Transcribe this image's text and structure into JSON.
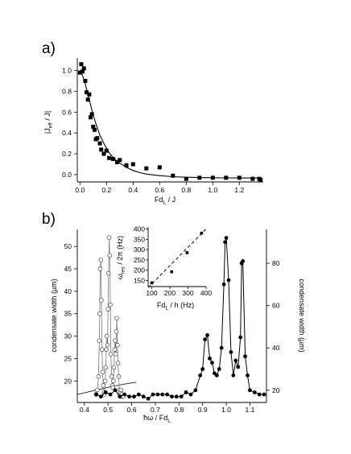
{
  "chart_data": [
    {
      "panel_label": "a)",
      "type": "scatter",
      "xlabel": "Fd",
      "xlabel_sub": "L",
      "xlabel_tail": " / J",
      "ylabel": "|J",
      "ylabel_sub": "eff",
      "ylabel_tail": " / J|",
      "xlim": [
        -0.02,
        1.38
      ],
      "ylim": [
        -0.07,
        1.12
      ],
      "xticks": [
        0.0,
        0.2,
        0.4,
        0.6,
        0.8,
        1.0,
        1.2
      ],
      "xtick_labels": [
        "0.0",
        "0.2",
        "0.4",
        "0.6",
        "0.8",
        "1.0",
        "1.2"
      ],
      "yticks": [
        0.0,
        0.2,
        0.4,
        0.6,
        0.8,
        1.0
      ],
      "ytick_labels": [
        "0.0",
        "0.2",
        "0.4",
        "0.6",
        "0.8",
        "1.0"
      ],
      "grid": false,
      "series": [
        {
          "marker": "square",
          "x": [
            0.0,
            0.01,
            0.02,
            0.03,
            0.04,
            0.05,
            0.06,
            0.07,
            0.08,
            0.09,
            0.1,
            0.11,
            0.12,
            0.13,
            0.15,
            0.16,
            0.18,
            0.2,
            0.22,
            0.25,
            0.28,
            0.3,
            0.35,
            0.4,
            0.5,
            0.6,
            0.7,
            0.8,
            0.9,
            1.0,
            1.1,
            1.2,
            1.3,
            1.35,
            1.36
          ],
          "y": [
            0.98,
            1.06,
            0.99,
            1.02,
            0.9,
            0.79,
            0.72,
            0.77,
            0.55,
            0.58,
            0.46,
            0.43,
            0.34,
            0.35,
            0.3,
            0.24,
            0.2,
            0.23,
            0.16,
            0.15,
            0.12,
            0.14,
            0.09,
            0.1,
            0.06,
            0.07,
            -0.01,
            -0.04,
            -0.03,
            -0.03,
            -0.03,
            -0.03,
            -0.04,
            -0.04,
            -0.05
          ]
        }
      ],
      "fit_curve": {
        "x": [
          0.0,
          0.02,
          0.04,
          0.06,
          0.08,
          0.1,
          0.12,
          0.15,
          0.18,
          0.22,
          0.26,
          0.3,
          0.35,
          0.4,
          0.45,
          0.5,
          0.6,
          0.7,
          0.8,
          0.9,
          1.0,
          1.1,
          1.2,
          1.3,
          1.36
        ],
        "y": [
          1.0,
          0.95,
          0.87,
          0.77,
          0.67,
          0.57,
          0.49,
          0.38,
          0.3,
          0.21,
          0.15,
          0.11,
          0.07,
          0.04,
          0.02,
          0.005,
          -0.01,
          -0.02,
          -0.025,
          -0.028,
          -0.03,
          -0.031,
          -0.032,
          -0.032,
          -0.033
        ]
      }
    },
    {
      "panel_label": "b)",
      "type": "line",
      "xlabel": "ħω / Fd",
      "xlabel_sub": "L",
      "ylabel": "condensate width (µm)",
      "y2label": "condensate width (µm)",
      "xlim": [
        0.37,
        1.17
      ],
      "ylim": [
        15.2,
        53.8
      ],
      "y2lim": [
        14.2,
        96
      ],
      "xticks": [
        0.4,
        0.5,
        0.6,
        0.7,
        0.8,
        0.9,
        1.0,
        1.1
      ],
      "xtick_labels": [
        "0.4",
        "0.5",
        "0.6",
        "0.7",
        "0.8",
        "0.9",
        "1.0",
        "1.1"
      ],
      "yticks": [
        20,
        25,
        30,
        35,
        40,
        45,
        50
      ],
      "ytick_labels": [
        "20",
        "25",
        "30",
        "35",
        "40",
        "45",
        "50"
      ],
      "y2ticks": [
        20,
        40,
        60,
        80
      ],
      "y2tick_labels": [
        "20",
        "40",
        "60",
        "80"
      ],
      "grid": false,
      "series": [
        {
          "name": "",
          "marker": "open-circle",
          "axis": "left",
          "x": [
            0.45,
            0.455,
            0.46,
            0.463,
            0.465,
            0.467,
            0.47,
            0.472,
            0.475,
            0.477,
            0.48,
            0.483,
            0.485,
            0.488,
            0.49,
            0.493,
            0.495,
            0.498,
            0.5,
            0.502,
            0.505,
            0.507,
            0.51,
            0.512,
            0.515,
            0.518,
            0.52,
            0.523,
            0.525,
            0.528,
            0.53,
            0.533,
            0.535,
            0.537,
            0.54,
            0.542,
            0.545,
            0.548,
            0.55,
            0.553,
            0.555,
            0.558,
            0.56,
            0.565
          ],
          "y": [
            17,
            18,
            21,
            29,
            35,
            45,
            47,
            38,
            27,
            22,
            19,
            17.5,
            17,
            20,
            23,
            27,
            30,
            28,
            36,
            44,
            52,
            48,
            37,
            26,
            21,
            19,
            18.5,
            20,
            23,
            27,
            29,
            26,
            31,
            34,
            28,
            24,
            21,
            18,
            17,
            17.5,
            18,
            17,
            16.5,
            16.5
          ]
        },
        {
          "name": "",
          "marker": "filled-circle",
          "axis": "right",
          "x": [
            0.45,
            0.47,
            0.49,
            0.51,
            0.53,
            0.55,
            0.57,
            0.59,
            0.61,
            0.63,
            0.65,
            0.67,
            0.69,
            0.71,
            0.73,
            0.75,
            0.77,
            0.79,
            0.81,
            0.83,
            0.85,
            0.87,
            0.89,
            0.9,
            0.91,
            0.92,
            0.93,
            0.94,
            0.95,
            0.96,
            0.97,
            0.98,
            0.99,
            0.995,
            1.0,
            1.01,
            1.02,
            1.03,
            1.04,
            1.05,
            1.06,
            1.065,
            1.07,
            1.08,
            1.09,
            1.1,
            1.12,
            1.14,
            1.16
          ],
          "y": [
            18,
            17,
            19,
            18,
            20,
            17,
            18,
            17,
            17,
            18,
            17,
            16,
            18,
            18,
            18,
            18,
            17,
            17,
            17,
            19,
            18,
            20,
            27,
            30,
            44,
            46,
            35,
            33,
            28,
            27,
            30,
            40,
            70,
            90,
            92,
            72,
            38,
            27,
            34,
            31,
            45,
            80,
            81,
            36,
            27,
            20,
            19,
            18,
            18
          ]
        }
      ],
      "baseline": {
        "x": [
          0.37,
          0.42,
          0.47,
          0.52,
          0.58,
          0.62
        ],
        "y": [
          17.0,
          17.6,
          18.2,
          18.8,
          19.4,
          19.7
        ]
      },
      "inset": {
        "type": "scatter",
        "xlabel": "Fd",
        "xlabel_sub": "L",
        "xlabel_tail": " / h (Hz)",
        "ylabel": "ω",
        "ylabel_sub": "res",
        "ylabel_tail": " / 2π (Hz)",
        "xlim": [
          80,
          400
        ],
        "ylim": [
          120,
          410
        ],
        "xticks": [
          100,
          200,
          300,
          400
        ],
        "xtick_labels": [
          "100",
          "200",
          "300",
          "400"
        ],
        "yticks": [
          150,
          200,
          250,
          300,
          350,
          400
        ],
        "ytick_labels": [
          "150",
          "200",
          "250",
          "300",
          "350",
          "400"
        ],
        "points": {
          "x": [
            100,
            210,
            295,
            375
          ],
          "y": [
            138,
            192,
            285,
            380
          ]
        },
        "fit_line": {
          "x": [
            80,
            400
          ],
          "y": [
            115,
            400
          ]
        }
      }
    }
  ]
}
